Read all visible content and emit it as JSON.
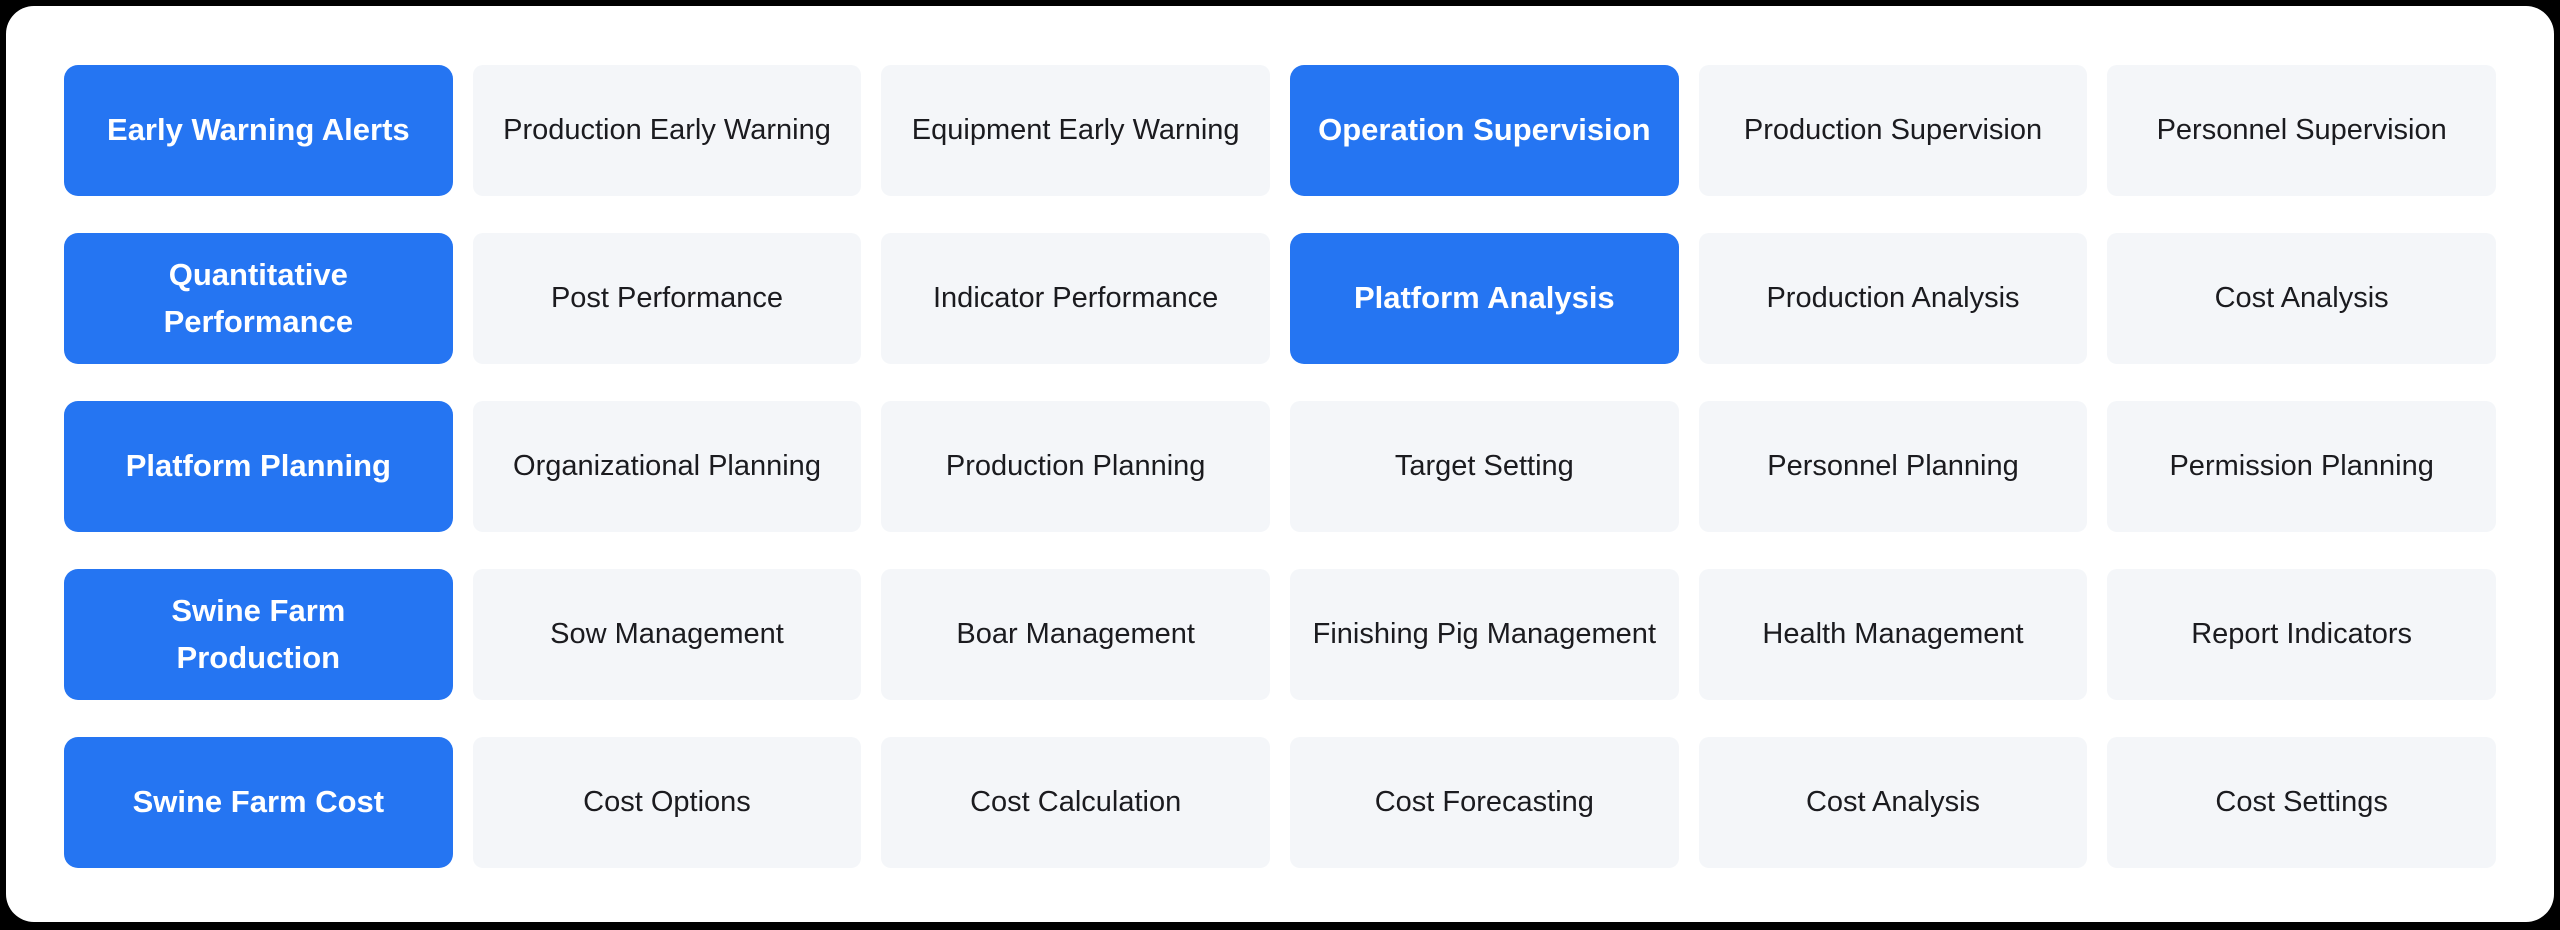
{
  "page": {
    "outer_background": "#000000",
    "card_background": "#ffffff"
  },
  "colors": {
    "primary_tile_bg": "#2575f2",
    "primary_tile_text": "#ffffff",
    "tile_bg": "#f4f6f9",
    "tile_text": "#1b1b1f"
  },
  "menu": {
    "rows": [
      {
        "items": [
          {
            "label": "Early Warning Alerts",
            "variant": "primary"
          },
          {
            "label": "Production Early Warning",
            "variant": "default"
          },
          {
            "label": "Equipment Early Warning",
            "variant": "default"
          },
          {
            "label": "Operation Supervision",
            "variant": "primary"
          },
          {
            "label": "Production Supervision",
            "variant": "default"
          },
          {
            "label": "Personnel Supervision",
            "variant": "default"
          }
        ]
      },
      {
        "items": [
          {
            "label": "Quantitative\nPerformance",
            "variant": "primary"
          },
          {
            "label": "Post Performance",
            "variant": "default"
          },
          {
            "label": "Indicator Performance",
            "variant": "default"
          },
          {
            "label": "Platform Analysis",
            "variant": "primary"
          },
          {
            "label": "Production Analysis",
            "variant": "default"
          },
          {
            "label": "Cost Analysis",
            "variant": "default"
          }
        ]
      },
      {
        "items": [
          {
            "label": "Platform Planning",
            "variant": "primary"
          },
          {
            "label": "Organizational Planning",
            "variant": "default"
          },
          {
            "label": "Production Planning",
            "variant": "default"
          },
          {
            "label": "Target Setting",
            "variant": "default"
          },
          {
            "label": "Personnel Planning",
            "variant": "default"
          },
          {
            "label": "Permission Planning",
            "variant": "default"
          }
        ]
      },
      {
        "items": [
          {
            "label": "Swine Farm\nProduction",
            "variant": "primary"
          },
          {
            "label": "Sow Management",
            "variant": "default"
          },
          {
            "label": "Boar Management",
            "variant": "default"
          },
          {
            "label": "Finishing Pig Management",
            "variant": "default"
          },
          {
            "label": "Health Management",
            "variant": "default"
          },
          {
            "label": "Report Indicators",
            "variant": "default"
          }
        ]
      },
      {
        "items": [
          {
            "label": "Swine Farm Cost",
            "variant": "primary"
          },
          {
            "label": "Cost Options",
            "variant": "default"
          },
          {
            "label": "Cost Calculation",
            "variant": "default"
          },
          {
            "label": "Cost Forecasting",
            "variant": "default"
          },
          {
            "label": "Cost Analysis",
            "variant": "default"
          },
          {
            "label": "Cost Settings",
            "variant": "default"
          }
        ]
      }
    ]
  }
}
